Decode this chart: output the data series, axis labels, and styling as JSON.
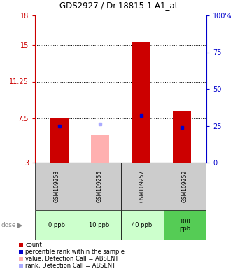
{
  "title": "GDS2927 / Dr.18815.1.A1_at",
  "samples": [
    "GSM109253",
    "GSM109255",
    "GSM109257",
    "GSM109259"
  ],
  "doses": [
    "0 ppb",
    "10 ppb",
    "40 ppb",
    "100\nppb"
  ],
  "ylim_left": [
    3,
    18
  ],
  "ylim_right": [
    0,
    100
  ],
  "yticks_left": [
    3,
    7.5,
    11.25,
    15,
    18
  ],
  "yticks_right": [
    0,
    25,
    50,
    75,
    100
  ],
  "ytick_labels_left": [
    "3",
    "7.5",
    "11.25",
    "15",
    "18"
  ],
  "ytick_labels_right": [
    "0",
    "25",
    "50",
    "75",
    "100%"
  ],
  "bar_bottom": 3,
  "red_bars": [
    {
      "x": 0,
      "value": 7.5,
      "color": "#cc0000"
    },
    {
      "x": 1,
      "value": 5.8,
      "color": "#ffb0b0"
    },
    {
      "x": 2,
      "value": 15.3,
      "color": "#cc0000"
    },
    {
      "x": 3,
      "value": 8.3,
      "color": "#cc0000"
    }
  ],
  "blue_markers": [
    {
      "x": 0,
      "value": 6.7,
      "color": "#0000cc"
    },
    {
      "x": 1,
      "value": 6.9,
      "color": "#aaaaff"
    },
    {
      "x": 2,
      "value": 7.8,
      "color": "#0000cc"
    },
    {
      "x": 3,
      "value": 6.6,
      "color": "#0000cc"
    }
  ],
  "dose_colors": [
    "#ccffcc",
    "#ccffcc",
    "#ccffcc",
    "#55cc55"
  ],
  "label_area_color": "#cccccc",
  "legend_items": [
    {
      "color": "#cc0000",
      "label": "count"
    },
    {
      "color": "#0000cc",
      "label": "percentile rank within the sample"
    },
    {
      "color": "#ffb0b0",
      "label": "value, Detection Call = ABSENT"
    },
    {
      "color": "#aaaaff",
      "label": "rank, Detection Call = ABSENT"
    }
  ],
  "grid_yticks": [
    7.5,
    11.25,
    15
  ]
}
